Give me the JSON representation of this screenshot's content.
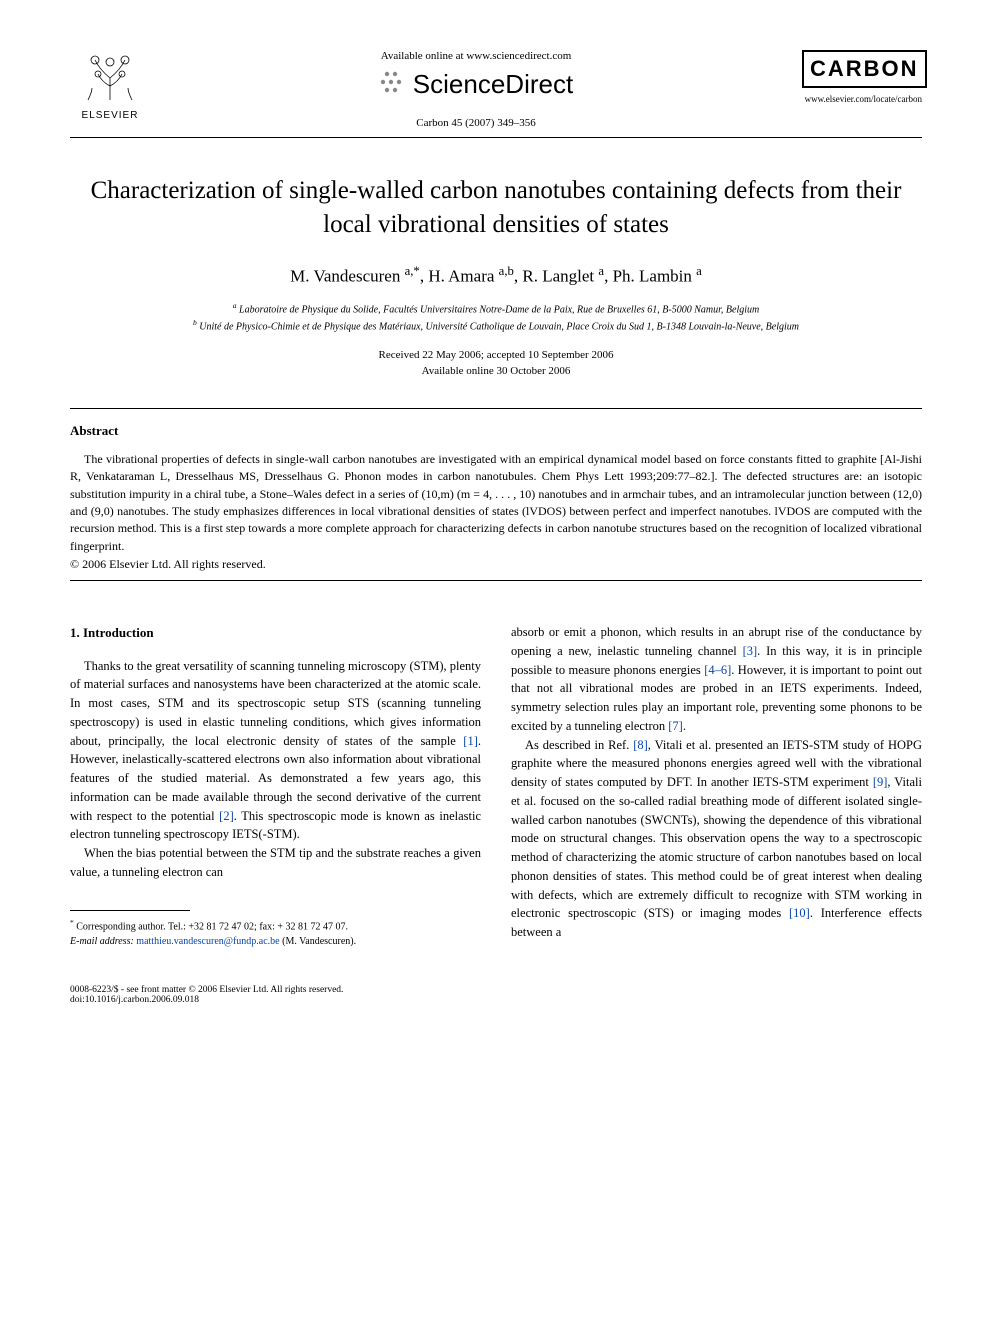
{
  "header": {
    "available_online": "Available online at www.sciencedirect.com",
    "sciencedirect": "ScienceDirect",
    "journal_ref": "Carbon 45 (2007) 349–356",
    "elsevier": "ELSEVIER",
    "carbon": "CARBON",
    "journal_url": "www.elsevier.com/locate/carbon"
  },
  "title": "Characterization of single-walled carbon nanotubes containing defects from their local vibrational densities of states",
  "authors_html": "M. Vandescuren <sup>a,*</sup>, H. Amara <sup>a,b</sup>, R. Langlet <sup>a</sup>, Ph. Lambin <sup>a</sup>",
  "affiliations": {
    "a": "Laboratoire de Physique du Solide, Facultés Universitaires Notre-Dame de la Paix, Rue de Bruxelles 61, B-5000 Namur, Belgium",
    "b": "Unité de Physico-Chimie et de Physique des Matériaux, Université Catholique de Louvain, Place Croix du Sud 1, B-1348 Louvain-la-Neuve, Belgium"
  },
  "dates": {
    "received": "Received 22 May 2006; accepted 10 September 2006",
    "online": "Available online 30 October 2006"
  },
  "abstract": {
    "heading": "Abstract",
    "text": "The vibrational properties of defects in single-wall carbon nanotubes are investigated with an empirical dynamical model based on force constants fitted to graphite [Al-Jishi R, Venkataraman L, Dresselhaus MS, Dresselhaus G. Phonon modes in carbon nanotubules. Chem Phys Lett 1993;209:77–82.]. The defected structures are: an isotopic substitution impurity in a chiral tube, a Stone–Wales defect in a series of (10,m) (m = 4, . . . , 10) nanotubes and in armchair tubes, and an intramolecular junction between (12,0) and (9,0) nanotubes. The study emphasizes differences in local vibrational densities of states (lVDOS) between perfect and imperfect nanotubes. lVDOS are computed with the recursion method. This is a first step towards a more complete approach for characterizing defects in carbon nanotube structures based on the recognition of localized vibrational fingerprint.",
    "copyright": "© 2006 Elsevier Ltd. All rights reserved."
  },
  "body": {
    "section_heading": "1. Introduction",
    "col1_p1": "Thanks to the great versatility of scanning tunneling microscopy (STM), plenty of material surfaces and nanosystems have been characterized at the atomic scale. In most cases, STM and its spectroscopic setup STS (scanning tunneling spectroscopy) is used in elastic tunneling conditions, which gives information about, principally, the local electronic density of states of the sample [1]. However, inelastically-scattered electrons own also information about vibrational features of the studied material. As demonstrated a few years ago, this information can be made available through the second derivative of the current with respect to the potential [2]. This spectroscopic mode is known as inelastic electron tunneling spectroscopy IETS(-STM).",
    "col1_p2": "When the bias potential between the STM tip and the substrate reaches a given value, a tunneling electron can",
    "col2_p1": "absorb or emit a phonon, which results in an abrupt rise of the conductance by opening a new, inelastic tunneling channel [3]. In this way, it is in principle possible to measure phonons energies [4–6]. However, it is important to point out that not all vibrational modes are probed in an IETS experiments. Indeed, symmetry selection rules play an important role, preventing some phonons to be excited by a tunneling electron [7].",
    "col2_p2": "As described in Ref. [8], Vitali et al. presented an IETS-STM study of HOPG graphite where the measured phonons energies agreed well with the vibrational density of states computed by DFT. In another IETS-STM experiment [9], Vitali et al. focused on the so-called radial breathing mode of different isolated single-walled carbon nanotubes (SWCNTs), showing the dependence of this vibrational mode on structural changes. This observation opens the way to a spectroscopic method of characterizing the atomic structure of carbon nanotubes based on local phonon densities of states. This method could be of great interest when dealing with defects, which are extremely difficult to recognize with STM working in electronic spectroscopic (STS) or imaging modes [10]. Interference effects between a"
  },
  "footnote": {
    "corresponding": "Corresponding author. Tel.: +32 81 72 47 02; fax: + 32 81 72 47 07.",
    "email_label": "E-mail address:",
    "email": "matthieu.vandescuren@fundp.ac.be",
    "email_attr": "(M. Vandescuren)."
  },
  "footer": {
    "left_line1": "0008-6223/$ - see front matter © 2006 Elsevier Ltd. All rights reserved.",
    "left_line2": "doi:10.1016/j.carbon.2006.09.018"
  },
  "refs": {
    "r1": "[1]",
    "r2": "[2]",
    "r3": "[3]",
    "r46": "[4–6]",
    "r7": "[7]",
    "r8": "[8]",
    "r9": "[9]",
    "r10": "[10]"
  },
  "colors": {
    "text": "#000000",
    "link": "#0645ad",
    "background": "#ffffff",
    "grey": "#888888"
  },
  "typography": {
    "title_fontsize": 25,
    "authors_fontsize": 17,
    "body_fontsize": 12.5,
    "abstract_fontsize": 12,
    "footnote_fontsize": 10,
    "footer_fontsize": 9.5,
    "font_family": "Georgia, Times New Roman, serif"
  }
}
